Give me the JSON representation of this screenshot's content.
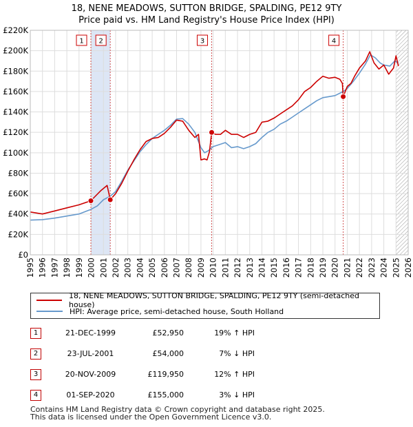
{
  "chart_data": {
    "type": "line",
    "title": "18, NENE MEADOWS, SUTTON BRIDGE, SPALDING, PE12 9TY",
    "subtitle": "Price paid vs. HM Land Registry's House Price Index (HPI)",
    "xlim": [
      1995,
      2026
    ],
    "ylim": [
      0,
      220000
    ],
    "y_ticks": [
      0,
      20000,
      40000,
      60000,
      80000,
      100000,
      120000,
      140000,
      160000,
      180000,
      200000,
      220000
    ],
    "y_tick_labels": [
      "£0",
      "£20K",
      "£40K",
      "£60K",
      "£80K",
      "£100K",
      "£120K",
      "£140K",
      "£160K",
      "£180K",
      "£200K",
      "£220K"
    ],
    "x_ticks": [
      1995,
      1996,
      1997,
      1998,
      1999,
      2000,
      2001,
      2002,
      2003,
      2004,
      2005,
      2006,
      2007,
      2008,
      2009,
      2010,
      2011,
      2012,
      2013,
      2014,
      2015,
      2016,
      2017,
      2018,
      2019,
      2020,
      2021,
      2022,
      2023,
      2024,
      2025,
      2026
    ],
    "x_tick_labels": [
      "1995",
      "1996",
      "1997",
      "1998",
      "1999",
      "2000",
      "2001",
      "2002",
      "2003",
      "2004",
      "2005",
      "2006",
      "2007",
      "2008",
      "2009",
      "2010",
      "2011",
      "2012",
      "2013",
      "2014",
      "2015",
      "2016",
      "2017",
      "2018",
      "2019",
      "2020",
      "2021",
      "2022",
      "2023",
      "2024",
      "2025",
      "2026"
    ],
    "grid": true,
    "series": [
      {
        "name": "18, NENE MEADOWS, SUTTON BRIDGE, SPALDING, PE12 9TY (semi-detached house)",
        "color": "#cc0000",
        "x": [
          1995.0,
          1996.0,
          1997.0,
          1998.0,
          1999.0,
          1999.97,
          2000.3,
          2000.8,
          2001.3,
          2001.56,
          2002.0,
          2002.5,
          2003.0,
          2003.5,
          2004.0,
          2004.5,
          2005.0,
          2005.5,
          2006.0,
          2006.5,
          2007.0,
          2007.5,
          2008.0,
          2008.5,
          2008.8,
          2009.0,
          2009.3,
          2009.5,
          2009.7,
          2009.88,
          2010.2,
          2010.6,
          2011.0,
          2011.5,
          2012.0,
          2012.5,
          2013.0,
          2013.5,
          2014.0,
          2014.5,
          2015.0,
          2015.5,
          2016.0,
          2016.5,
          2017.0,
          2017.5,
          2018.0,
          2018.5,
          2019.0,
          2019.5,
          2020.0,
          2020.4,
          2020.6,
          2020.67,
          2021.0,
          2021.3,
          2021.6,
          2022.0,
          2022.5,
          2022.85,
          2023.2,
          2023.6,
          2024.0,
          2024.4,
          2024.8,
          2025.0,
          2025.2
        ],
        "y": [
          42000,
          40000,
          43000,
          46000,
          49000,
          52950,
          57000,
          63000,
          68000,
          54000,
          60000,
          70000,
          82000,
          93000,
          103000,
          111000,
          114000,
          115000,
          119000,
          125000,
          132000,
          131000,
          122000,
          115000,
          118000,
          93000,
          94000,
          93000,
          101000,
          119950,
          118000,
          118000,
          122000,
          118000,
          118000,
          115000,
          118000,
          120000,
          130000,
          131000,
          134000,
          138000,
          142000,
          146000,
          152000,
          160000,
          164000,
          170000,
          175000,
          173000,
          174000,
          172000,
          168000,
          155000,
          165000,
          168000,
          175000,
          183000,
          190000,
          199000,
          188000,
          182000,
          186000,
          177000,
          183000,
          195000,
          185000
        ]
      },
      {
        "name": "HPI: Average price, semi-detached house, South Holland",
        "color": "#6699cc",
        "x": [
          1995.0,
          1996.0,
          1997.0,
          1998.0,
          1999.0,
          1999.97,
          2000.5,
          2001.0,
          2001.56,
          2002.0,
          2002.5,
          2003.0,
          2003.5,
          2004.0,
          2004.5,
          2005.0,
          2005.5,
          2006.0,
          2006.5,
          2007.0,
          2007.5,
          2008.0,
          2008.5,
          2009.0,
          2009.3,
          2009.6,
          2010.0,
          2010.5,
          2011.0,
          2011.5,
          2012.0,
          2012.5,
          2013.0,
          2013.5,
          2014.0,
          2014.5,
          2015.0,
          2015.5,
          2016.0,
          2016.5,
          2017.0,
          2017.5,
          2018.0,
          2018.5,
          2019.0,
          2019.5,
          2020.0,
          2020.67,
          2021.0,
          2021.5,
          2022.0,
          2022.5,
          2022.9,
          2023.3,
          2023.7,
          2024.0,
          2024.5,
          2024.9,
          2025.2
        ],
        "y": [
          34000,
          34500,
          36000,
          38000,
          40000,
          44500,
          48000,
          54000,
          57500,
          62000,
          72000,
          83000,
          92000,
          101000,
          108000,
          114000,
          118000,
          122000,
          127000,
          133000,
          133500,
          128000,
          120000,
          105000,
          100000,
          102000,
          106000,
          108000,
          110000,
          105000,
          106000,
          104000,
          106000,
          109000,
          115000,
          120000,
          123000,
          128000,
          131000,
          135000,
          139000,
          143000,
          147000,
          151000,
          154000,
          155000,
          156000,
          160000,
          163000,
          170000,
          178000,
          187000,
          196000,
          193000,
          188000,
          186000,
          185000,
          190000,
          188000
        ]
      }
    ],
    "transactions": [
      {
        "n": "1",
        "date": "21-DEC-1999",
        "price": "£52,950",
        "hpi": "19% ↑ HPI",
        "x": 1999.97,
        "y": 52950
      },
      {
        "n": "2",
        "date": "23-JUL-2001",
        "price": "£54,000",
        "hpi": "7% ↓ HPI",
        "x": 2001.56,
        "y": 54000
      },
      {
        "n": "3",
        "date": "20-NOV-2009",
        "price": "£119,950",
        "hpi": "12% ↑ HPI",
        "x": 2009.88,
        "y": 119950
      },
      {
        "n": "4",
        "date": "01-SEP-2020",
        "price": "£155,000",
        "hpi": "3% ↓ HPI",
        "x": 2020.67,
        "y": 155000
      }
    ],
    "shaded_range": [
      1999.97,
      2001.56
    ],
    "hatched_from": 2025.0,
    "legend_position": "below"
  },
  "footer": {
    "line1": "Contains HM Land Registry data © Crown copyright and database right 2025.",
    "line2": "This data is licensed under the Open Government Licence v3.0."
  },
  "colors": {
    "price": "#cc0000",
    "hpi": "#6699cc",
    "grid": "#dddddd",
    "shade": "#dde6f5"
  }
}
